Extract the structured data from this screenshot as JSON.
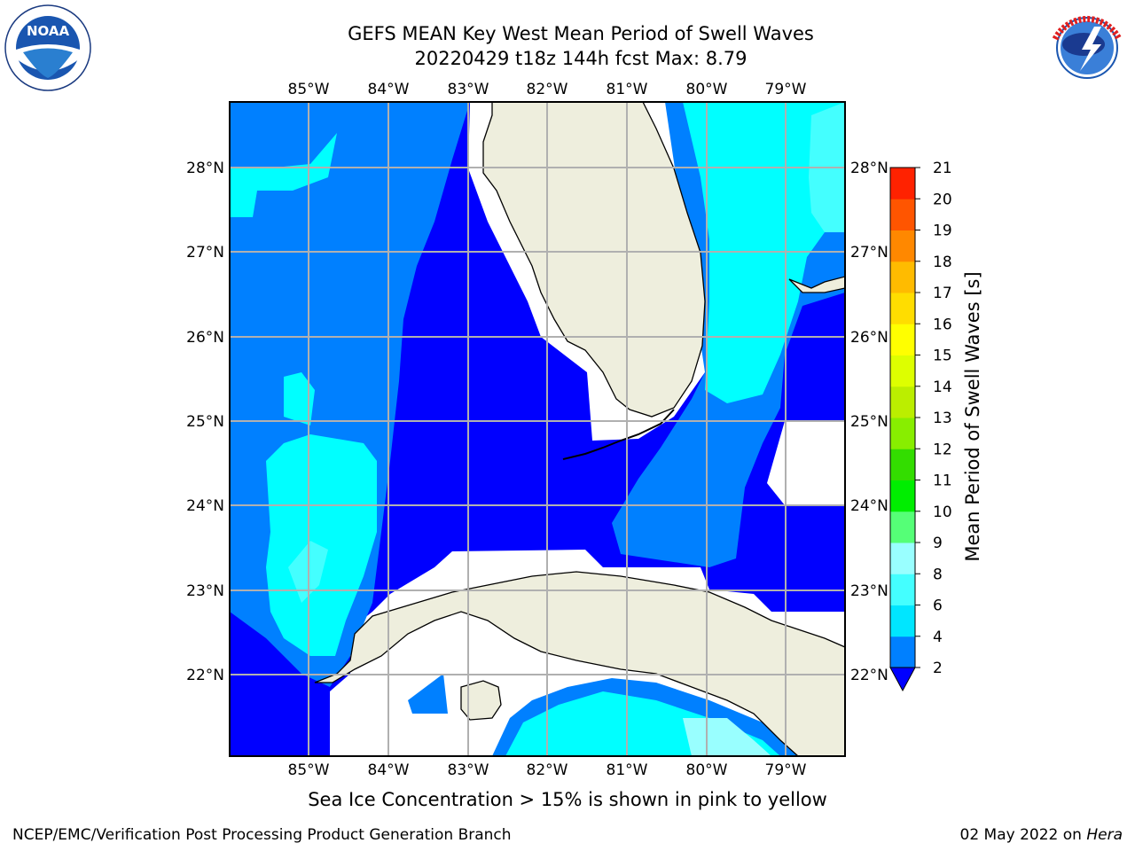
{
  "header": {
    "title_line1": "GEFS MEAN Key West Mean Period of Swell Waves",
    "title_line2": "20220429 t18z 144h fcst   Max: 8.79"
  },
  "logos": {
    "left": {
      "name": "noaa-logo",
      "text": "NOAA",
      "ring_text": "NATIONAL OCEANIC AND ATMOSPHERIC ADMINISTRATION · U.S. DEPARTMENT OF COMMERCE"
    },
    "right": {
      "name": "nws-logo",
      "ring_text": "NATIONAL WEATHER SERVICE"
    }
  },
  "map": {
    "lon_labels": [
      "85°W",
      "84°W",
      "83°W",
      "82°W",
      "81°W",
      "80°W",
      "79°W"
    ],
    "lat_labels": [
      "28°N",
      "27°N",
      "26°N",
      "25°N",
      "24°N",
      "23°N",
      "22°N"
    ],
    "colors": {
      "level_2_4": "#0080ff",
      "below_2": "#0000ff",
      "level_4_6": "#00ffff",
      "level_6_8": "#44ffff",
      "level_8_9": "#99ffff",
      "land": "#eeeedd",
      "grid": "#b0b0b0"
    }
  },
  "colorbar": {
    "label": "Mean Period of Swell Waves [s]",
    "ticks": [
      "2",
      "4",
      "6",
      "8",
      "9",
      "10",
      "11",
      "12",
      "13",
      "14",
      "15",
      "16",
      "17",
      "18",
      "19",
      "20",
      "21"
    ],
    "colors": [
      "#0080ff",
      "#00e6ff",
      "#44ffff",
      "#99ffff",
      "#55ff77",
      "#00ee00",
      "#33dd00",
      "#88ee00",
      "#bbee00",
      "#ddff00",
      "#ffff00",
      "#ffdd00",
      "#ffbb00",
      "#ff8800",
      "#ff5500",
      "#ff2200"
    ],
    "extend_color": "#0000ff"
  },
  "caption": "Sea Ice Concentration > 15% is shown in pink to yellow",
  "footer": {
    "left": "NCEP/EMC/Verification Post Processing Product Generation Branch",
    "right_date": "02 May 2022 on ",
    "right_host": "Hera"
  }
}
